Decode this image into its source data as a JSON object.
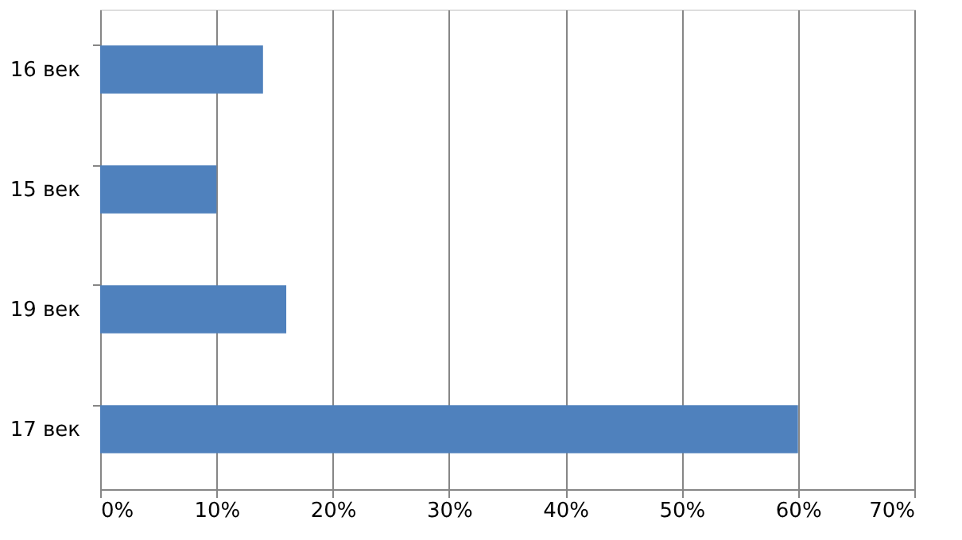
{
  "chart_data": {
    "type": "bar",
    "orientation": "horizontal",
    "categories": [
      "16 век",
      "15 век",
      "19 век",
      "17 век"
    ],
    "values": [
      14,
      10,
      16,
      60
    ],
    "color": "#4f81bd",
    "xlim": [
      0,
      70
    ],
    "xticks": [
      {
        "value": 0,
        "label": "0%"
      },
      {
        "value": 10,
        "label": "10%"
      },
      {
        "value": 20,
        "label": "20%"
      },
      {
        "value": 30,
        "label": "30%"
      },
      {
        "value": 40,
        "label": "40%"
      },
      {
        "value": 50,
        "label": "50%"
      },
      {
        "value": 60,
        "label": "60%"
      },
      {
        "value": 70,
        "label": "70%"
      }
    ],
    "grid": "x"
  }
}
